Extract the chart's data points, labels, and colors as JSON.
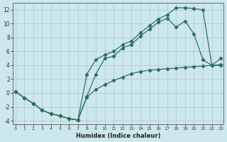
{
  "bg_color": "#cde8ec",
  "grid_color": "#aecfd4",
  "line_color": "#2e6e65",
  "xlabel": "Humidex (Indice chaleur)",
  "xlim": [
    -0.3,
    23.3
  ],
  "ylim": [
    -4.5,
    13.0
  ],
  "xticks": [
    0,
    1,
    2,
    3,
    4,
    5,
    6,
    7,
    8,
    9,
    10,
    11,
    12,
    13,
    14,
    15,
    16,
    17,
    18,
    19,
    20,
    21,
    22,
    23
  ],
  "yticks": [
    -4,
    -2,
    0,
    2,
    4,
    6,
    8,
    10,
    12
  ],
  "line1_x": [
    0,
    1,
    2,
    3,
    4,
    5,
    6,
    7,
    8,
    9,
    10,
    11,
    12,
    13,
    14,
    15,
    16,
    17,
    18,
    19,
    20,
    21,
    22,
    23
  ],
  "line1_y": [
    0.2,
    -0.7,
    -1.5,
    -2.5,
    -3.0,
    -3.3,
    -3.7,
    -3.9,
    2.7,
    4.8,
    5.5,
    6.0,
    7.0,
    7.5,
    8.7,
    9.7,
    10.7,
    11.3,
    12.3,
    12.3,
    12.2,
    12.0,
    4.0,
    4.0
  ],
  "line2_x": [
    0,
    1,
    2,
    3,
    4,
    5,
    6,
    7,
    8,
    9,
    10,
    11,
    12,
    13,
    14,
    15,
    16,
    17,
    18,
    19,
    20,
    21,
    22,
    23
  ],
  "line2_y": [
    0.2,
    -0.7,
    -1.5,
    -2.5,
    -3.0,
    -3.3,
    -3.7,
    -3.9,
    -0.5,
    2.7,
    5.0,
    5.3,
    6.5,
    7.0,
    8.2,
    9.2,
    10.2,
    10.8,
    9.5,
    10.4,
    8.5,
    4.8,
    4.0,
    5.0
  ],
  "line3_x": [
    0,
    1,
    2,
    3,
    4,
    5,
    6,
    7,
    8,
    9,
    10,
    11,
    12,
    13,
    14,
    15,
    16,
    17,
    18,
    19,
    20,
    21,
    22,
    23
  ],
  "line3_y": [
    0.2,
    -0.7,
    -1.5,
    -2.5,
    -3.0,
    -3.3,
    -3.7,
    -3.9,
    -0.6,
    0.5,
    1.2,
    1.8,
    2.3,
    2.8,
    3.1,
    3.3,
    3.4,
    3.5,
    3.6,
    3.7,
    3.8,
    3.9,
    4.0,
    4.1
  ]
}
